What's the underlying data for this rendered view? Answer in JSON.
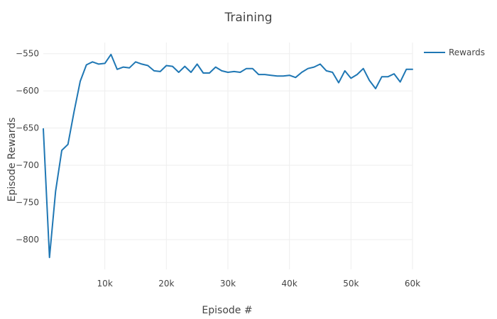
{
  "chart_data": {
    "type": "line",
    "title": "Training",
    "xlabel": "Episode #",
    "ylabel": "Episode Rewards",
    "xlim": [
      0,
      60000
    ],
    "ylim": [
      -840,
      -535
    ],
    "xticks": [
      10000,
      20000,
      30000,
      40000,
      50000,
      60000
    ],
    "xtick_labels": [
      "10k",
      "20k",
      "30k",
      "40k",
      "50k",
      "60k"
    ],
    "yticks": [
      -800,
      -750,
      -700,
      -650,
      -600,
      -550
    ],
    "ytick_labels": [
      "−800",
      "−750",
      "−700",
      "−650",
      "−600",
      "−550"
    ],
    "grid": true,
    "legend_position": "top-right",
    "series": [
      {
        "name": "Rewards",
        "color": "#1f77b4",
        "x": [
          0,
          1000,
          2000,
          3000,
          4000,
          5000,
          6000,
          7000,
          8000,
          9000,
          10000,
          11000,
          12000,
          13000,
          14000,
          15000,
          16000,
          17000,
          18000,
          19000,
          20000,
          21000,
          22000,
          23000,
          24000,
          25000,
          26000,
          27000,
          28000,
          29000,
          30000,
          31000,
          32000,
          33000,
          34000,
          35000,
          36000,
          37000,
          38000,
          39000,
          40000,
          41000,
          42000,
          43000,
          44000,
          45000,
          46000,
          47000,
          48000,
          49000,
          50000,
          51000,
          52000,
          53000,
          54000,
          55000,
          56000,
          57000,
          58000,
          59000,
          60000
        ],
        "y": [
          -651,
          -824,
          -735,
          -680,
          -672,
          -628,
          -587,
          -565,
          -561,
          -564,
          -563,
          -551,
          -571,
          -568,
          -569,
          -561,
          -564,
          -566,
          -573,
          -574,
          -566,
          -567,
          -575,
          -567,
          -575,
          -564,
          -576,
          -576,
          -568,
          -573,
          -575,
          -574,
          -575,
          -570,
          -570,
          -578,
          -578,
          -579,
          -580,
          -580,
          -579,
          -582,
          -575,
          -570,
          -568,
          -564,
          -573,
          -575,
          -589,
          -573,
          -583,
          -578,
          -570,
          -586,
          -597,
          -581,
          -581,
          -577,
          -588,
          -571,
          -571
        ]
      }
    ]
  }
}
